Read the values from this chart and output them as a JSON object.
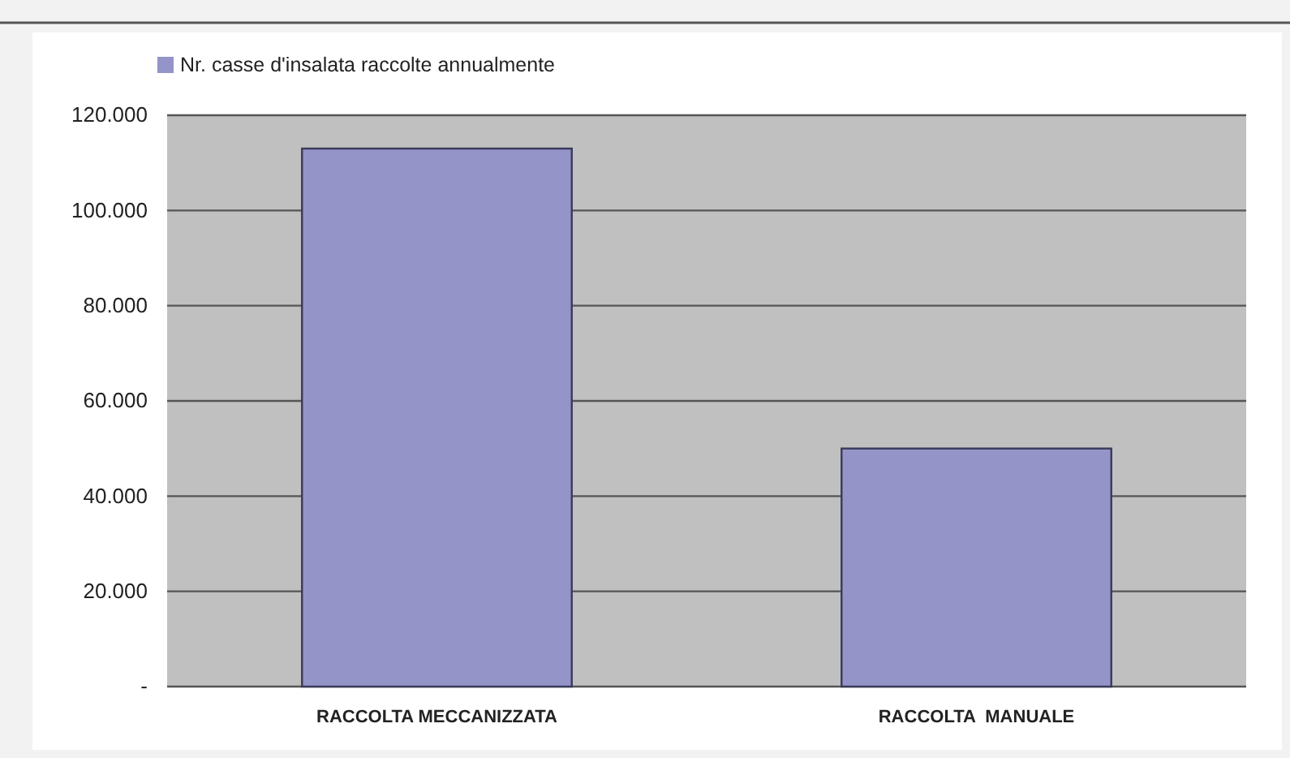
{
  "chart_data": {
    "type": "bar",
    "categories": [
      "RACCOLTA MECCANIZZATA",
      "RACCOLTA  MANUALE"
    ],
    "series": [
      {
        "name": "Nr. casse d'insalata raccolte annualmente",
        "color": "#9494c8",
        "values": [
          113000,
          50000
        ]
      }
    ],
    "ylim": [
      0,
      120000
    ],
    "yticks": [
      {
        "value": 0,
        "label": "-"
      },
      {
        "value": 20000,
        "label": "20.000"
      },
      {
        "value": 40000,
        "label": "40.000"
      },
      {
        "value": 60000,
        "label": "60.000"
      },
      {
        "value": 80000,
        "label": "80.000"
      },
      {
        "value": 100000,
        "label": "100.000"
      },
      {
        "value": 120000,
        "label": "120.000"
      }
    ],
    "grid": "y",
    "legend": "top left"
  }
}
